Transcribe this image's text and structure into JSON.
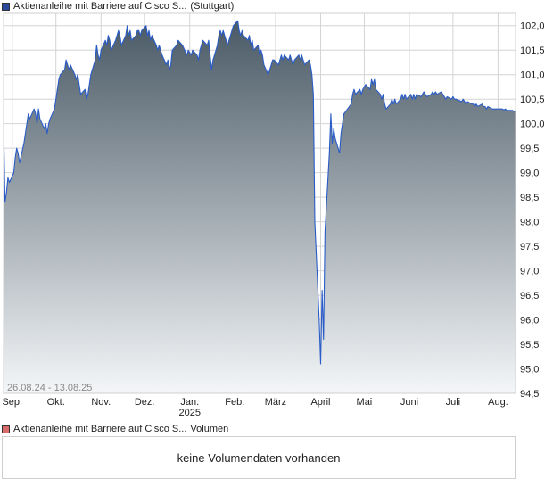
{
  "price_legend": {
    "label": "Aktienanleihe mit Barriere auf Cisco S...",
    "exchange": "(Stuttgart)",
    "swatch_color": "#2a4a9c"
  },
  "volume_legend": {
    "label": "Aktienanleihe mit Barriere auf Cisco S...",
    "suffix": "Volumen",
    "swatch_color": "#d96b6b"
  },
  "volume_panel": {
    "message": "keine Volumendaten vorhanden"
  },
  "colors": {
    "line": "#2a5cc8",
    "area_top": "#4a5a66",
    "area_bottom": "#f4f6f8",
    "grid": "#d4d4d4",
    "frame": "#cfcfcf"
  },
  "chart_data": {
    "type": "area",
    "date_range_label": "26.08.24 - 13.08.25",
    "xlim": [
      "2024-08-26",
      "2025-08-13"
    ],
    "ylim": [
      94.5,
      102.25
    ],
    "yticks": [
      {
        "value": 94.5,
        "label": "94,5"
      },
      {
        "value": 95.0,
        "label": "95,0"
      },
      {
        "value": 95.5,
        "label": "95,5"
      },
      {
        "value": 96.0,
        "label": "96,0"
      },
      {
        "value": 96.5,
        "label": "96,5"
      },
      {
        "value": 97.0,
        "label": "97,0"
      },
      {
        "value": 97.5,
        "label": "97,5"
      },
      {
        "value": 98.0,
        "label": "98,0"
      },
      {
        "value": 98.5,
        "label": "98,5"
      },
      {
        "value": 99.0,
        "label": "99,0"
      },
      {
        "value": 99.5,
        "label": "99,5"
      },
      {
        "value": 100.0,
        "label": "100,0"
      },
      {
        "value": 100.5,
        "label": "100,5"
      },
      {
        "value": 101.0,
        "label": "101,0"
      },
      {
        "value": 101.5,
        "label": "101,5"
      },
      {
        "value": 102.0,
        "label": "102,0"
      }
    ],
    "xticks": [
      {
        "date": "2024-09-01",
        "label": "Sep."
      },
      {
        "date": "2024-10-01",
        "label": "Okt."
      },
      {
        "date": "2024-11-01",
        "label": "Nov."
      },
      {
        "date": "2024-12-01",
        "label": "Dez."
      },
      {
        "date": "2025-01-01",
        "label": "Jan.",
        "sublabel": "2025"
      },
      {
        "date": "2025-02-01",
        "label": "Feb."
      },
      {
        "date": "2025-03-01",
        "label": "März"
      },
      {
        "date": "2025-04-01",
        "label": "April"
      },
      {
        "date": "2025-05-01",
        "label": "Mai"
      },
      {
        "date": "2025-06-01",
        "label": "Juni"
      },
      {
        "date": "2025-07-01",
        "label": "Juli"
      },
      {
        "date": "2025-08-01",
        "label": "Aug."
      }
    ],
    "grid": true,
    "series": [
      {
        "points": [
          [
            "2024-08-26",
            100.0
          ],
          [
            "2024-08-27",
            98.4
          ],
          [
            "2024-08-28",
            98.6
          ],
          [
            "2024-08-29",
            98.9
          ],
          [
            "2024-08-30",
            98.8
          ],
          [
            "2024-09-02",
            99.0
          ],
          [
            "2024-09-03",
            99.3
          ],
          [
            "2024-09-04",
            99.5
          ],
          [
            "2024-09-05",
            99.4
          ],
          [
            "2024-09-06",
            99.2
          ],
          [
            "2024-09-09",
            99.6
          ],
          [
            "2024-09-10",
            99.8
          ],
          [
            "2024-09-11",
            100.0
          ],
          [
            "2024-09-12",
            100.2
          ],
          [
            "2024-09-13",
            100.1
          ],
          [
            "2024-09-16",
            100.3
          ],
          [
            "2024-09-17",
            100.2
          ],
          [
            "2024-09-18",
            100.0
          ],
          [
            "2024-09-19",
            100.3
          ],
          [
            "2024-09-20",
            100.1
          ],
          [
            "2024-09-23",
            99.9
          ],
          [
            "2024-09-24",
            100.0
          ],
          [
            "2024-09-25",
            99.8
          ],
          [
            "2024-09-26",
            100.0
          ],
          [
            "2024-09-27",
            100.1
          ],
          [
            "2024-09-30",
            100.3
          ],
          [
            "2024-10-01",
            100.5
          ],
          [
            "2024-10-02",
            100.7
          ],
          [
            "2024-10-03",
            100.9
          ],
          [
            "2024-10-04",
            101.0
          ],
          [
            "2024-10-07",
            101.1
          ],
          [
            "2024-10-08",
            101.3
          ],
          [
            "2024-10-09",
            101.2
          ],
          [
            "2024-10-10",
            101.1
          ],
          [
            "2024-10-11",
            101.2
          ],
          [
            "2024-10-14",
            101.0
          ],
          [
            "2024-10-15",
            100.9
          ],
          [
            "2024-10-16",
            101.0
          ],
          [
            "2024-10-17",
            100.8
          ],
          [
            "2024-10-18",
            100.6
          ],
          [
            "2024-10-21",
            100.7
          ],
          [
            "2024-10-22",
            100.5
          ],
          [
            "2024-10-23",
            100.6
          ],
          [
            "2024-10-24",
            100.8
          ],
          [
            "2024-10-25",
            101.0
          ],
          [
            "2024-10-28",
            101.3
          ],
          [
            "2024-10-29",
            101.6
          ],
          [
            "2024-10-30",
            101.4
          ],
          [
            "2024-10-31",
            101.3
          ],
          [
            "2024-11-01",
            101.5
          ],
          [
            "2024-11-04",
            101.7
          ],
          [
            "2024-11-05",
            101.6
          ],
          [
            "2024-11-06",
            101.8
          ],
          [
            "2024-11-07",
            101.7
          ],
          [
            "2024-11-08",
            101.5
          ],
          [
            "2024-11-11",
            101.7
          ],
          [
            "2024-11-12",
            101.8
          ],
          [
            "2024-11-13",
            101.9
          ],
          [
            "2024-11-14",
            101.8
          ],
          [
            "2024-11-15",
            101.6
          ],
          [
            "2024-11-18",
            101.8
          ],
          [
            "2024-11-19",
            102.0
          ],
          [
            "2024-11-20",
            101.8
          ],
          [
            "2024-11-21",
            101.9
          ],
          [
            "2024-11-22",
            101.7
          ],
          [
            "2024-11-25",
            101.8
          ],
          [
            "2024-11-26",
            101.9
          ],
          [
            "2024-11-27",
            101.9
          ],
          [
            "2024-11-28",
            101.8
          ],
          [
            "2024-11-29",
            101.9
          ],
          [
            "2024-12-02",
            102.0
          ],
          [
            "2024-12-03",
            101.8
          ],
          [
            "2024-12-04",
            101.9
          ],
          [
            "2024-12-05",
            101.7
          ],
          [
            "2024-12-06",
            101.8
          ],
          [
            "2024-12-09",
            101.6
          ],
          [
            "2024-12-10",
            101.5
          ],
          [
            "2024-12-11",
            101.6
          ],
          [
            "2024-12-12",
            101.5
          ],
          [
            "2024-12-13",
            101.4
          ],
          [
            "2024-12-16",
            101.2
          ],
          [
            "2024-12-17",
            101.3
          ],
          [
            "2024-12-18",
            101.1
          ],
          [
            "2024-12-19",
            101.2
          ],
          [
            "2024-12-20",
            101.5
          ],
          [
            "2024-12-23",
            101.6
          ],
          [
            "2024-12-24",
            101.7
          ],
          [
            "2024-12-27",
            101.6
          ],
          [
            "2024-12-30",
            101.4
          ],
          [
            "2024-12-31",
            101.5
          ],
          [
            "2025-01-02",
            101.4
          ],
          [
            "2025-01-03",
            101.5
          ],
          [
            "2025-01-06",
            101.4
          ],
          [
            "2025-01-07",
            101.3
          ],
          [
            "2025-01-08",
            101.5
          ],
          [
            "2025-01-09",
            101.6
          ],
          [
            "2025-01-10",
            101.7
          ],
          [
            "2025-01-13",
            101.6
          ],
          [
            "2025-01-14",
            101.7
          ],
          [
            "2025-01-15",
            101.4
          ],
          [
            "2025-01-16",
            101.1
          ],
          [
            "2025-01-17",
            101.3
          ],
          [
            "2025-01-20",
            101.6
          ],
          [
            "2025-01-21",
            101.8
          ],
          [
            "2025-01-22",
            101.9
          ],
          [
            "2025-01-23",
            101.8
          ],
          [
            "2025-01-24",
            101.9
          ],
          [
            "2025-01-27",
            101.6
          ],
          [
            "2025-01-28",
            101.7
          ],
          [
            "2025-01-29",
            101.8
          ],
          [
            "2025-01-30",
            101.9
          ],
          [
            "2025-01-31",
            102.0
          ],
          [
            "2025-02-03",
            102.1
          ],
          [
            "2025-02-04",
            101.9
          ],
          [
            "2025-02-05",
            101.8
          ],
          [
            "2025-02-06",
            101.9
          ],
          [
            "2025-02-07",
            101.8
          ],
          [
            "2025-02-10",
            101.7
          ],
          [
            "2025-02-11",
            101.8
          ],
          [
            "2025-02-12",
            101.6
          ],
          [
            "2025-02-13",
            101.7
          ],
          [
            "2025-02-14",
            101.5
          ],
          [
            "2025-02-17",
            101.6
          ],
          [
            "2025-02-18",
            101.4
          ],
          [
            "2025-02-19",
            101.5
          ],
          [
            "2025-02-20",
            101.4
          ],
          [
            "2025-02-21",
            101.2
          ],
          [
            "2025-02-24",
            101.0
          ],
          [
            "2025-02-25",
            101.1
          ],
          [
            "2025-02-26",
            101.2
          ],
          [
            "2025-02-27",
            101.3
          ],
          [
            "2025-02-28",
            101.3
          ],
          [
            "2025-03-03",
            101.2
          ],
          [
            "2025-03-04",
            101.3
          ],
          [
            "2025-03-05",
            101.4
          ],
          [
            "2025-03-06",
            101.3
          ],
          [
            "2025-03-07",
            101.4
          ],
          [
            "2025-03-10",
            101.3
          ],
          [
            "2025-03-11",
            101.4
          ],
          [
            "2025-03-12",
            101.3
          ],
          [
            "2025-03-13",
            101.2
          ],
          [
            "2025-03-14",
            101.3
          ],
          [
            "2025-03-17",
            101.4
          ],
          [
            "2025-03-18",
            101.3
          ],
          [
            "2025-03-19",
            101.4
          ],
          [
            "2025-03-20",
            101.3
          ],
          [
            "2025-03-21",
            101.2
          ],
          [
            "2025-03-24",
            101.3
          ],
          [
            "2025-03-25",
            101.2
          ],
          [
            "2025-03-26",
            101.0
          ],
          [
            "2025-03-27",
            100.6
          ],
          [
            "2025-03-28",
            98.0
          ],
          [
            "2025-03-31",
            96.0
          ],
          [
            "2025-04-01",
            95.1
          ],
          [
            "2025-04-02",
            96.6
          ],
          [
            "2025-04-03",
            95.6
          ],
          [
            "2025-04-04",
            97.8
          ],
          [
            "2025-04-07",
            99.4
          ],
          [
            "2025-04-08",
            100.2
          ],
          [
            "2025-04-09",
            99.6
          ],
          [
            "2025-04-10",
            99.9
          ],
          [
            "2025-04-11",
            99.7
          ],
          [
            "2025-04-14",
            99.4
          ],
          [
            "2025-04-15",
            99.8
          ],
          [
            "2025-04-16",
            100.0
          ],
          [
            "2025-04-17",
            100.2
          ],
          [
            "2025-04-22",
            100.4
          ],
          [
            "2025-04-23",
            100.6
          ],
          [
            "2025-04-24",
            100.7
          ],
          [
            "2025-04-25",
            100.6
          ],
          [
            "2025-04-28",
            100.7
          ],
          [
            "2025-04-29",
            100.6
          ],
          [
            "2025-04-30",
            100.7
          ],
          [
            "2025-05-02",
            100.8
          ],
          [
            "2025-05-05",
            100.7
          ],
          [
            "2025-05-06",
            100.9
          ],
          [
            "2025-05-07",
            100.8
          ],
          [
            "2025-05-08",
            100.9
          ],
          [
            "2025-05-09",
            100.7
          ],
          [
            "2025-05-12",
            100.6
          ],
          [
            "2025-05-13",
            100.5
          ],
          [
            "2025-05-14",
            100.6
          ],
          [
            "2025-05-15",
            100.4
          ],
          [
            "2025-05-16",
            100.3
          ],
          [
            "2025-05-19",
            100.4
          ],
          [
            "2025-05-20",
            100.5
          ],
          [
            "2025-05-21",
            100.4
          ],
          [
            "2025-05-22",
            100.5
          ],
          [
            "2025-05-23",
            100.4
          ],
          [
            "2025-05-26",
            100.5
          ],
          [
            "2025-05-27",
            100.6
          ],
          [
            "2025-05-28",
            100.5
          ],
          [
            "2025-05-29",
            100.6
          ],
          [
            "2025-05-30",
            100.5
          ],
          [
            "2025-06-02",
            100.6
          ],
          [
            "2025-06-03",
            100.5
          ],
          [
            "2025-06-04",
            100.6
          ],
          [
            "2025-06-05",
            100.5
          ],
          [
            "2025-06-06",
            100.6
          ],
          [
            "2025-06-09",
            100.55
          ],
          [
            "2025-06-10",
            100.6
          ],
          [
            "2025-06-11",
            100.65
          ],
          [
            "2025-06-12",
            100.6
          ],
          [
            "2025-06-13",
            100.55
          ],
          [
            "2025-06-16",
            100.6
          ],
          [
            "2025-06-17",
            100.65
          ],
          [
            "2025-06-18",
            100.6
          ],
          [
            "2025-06-19",
            100.65
          ],
          [
            "2025-06-20",
            100.6
          ],
          [
            "2025-06-23",
            100.65
          ],
          [
            "2025-06-24",
            100.6
          ],
          [
            "2025-06-25",
            100.55
          ],
          [
            "2025-06-26",
            100.5
          ],
          [
            "2025-06-27",
            100.55
          ],
          [
            "2025-06-30",
            100.5
          ],
          [
            "2025-07-01",
            100.55
          ],
          [
            "2025-07-02",
            100.5
          ],
          [
            "2025-07-03",
            100.5
          ],
          [
            "2025-07-07",
            100.45
          ],
          [
            "2025-07-08",
            100.5
          ],
          [
            "2025-07-09",
            100.45
          ],
          [
            "2025-07-10",
            100.4
          ],
          [
            "2025-07-11",
            100.45
          ],
          [
            "2025-07-14",
            100.4
          ],
          [
            "2025-07-15",
            100.4
          ],
          [
            "2025-07-16",
            100.35
          ],
          [
            "2025-07-17",
            100.4
          ],
          [
            "2025-07-18",
            100.35
          ],
          [
            "2025-07-21",
            100.4
          ],
          [
            "2025-07-22",
            100.35
          ],
          [
            "2025-07-23",
            100.35
          ],
          [
            "2025-07-24",
            100.3
          ],
          [
            "2025-07-25",
            100.35
          ],
          [
            "2025-07-28",
            100.3
          ],
          [
            "2025-07-29",
            100.3
          ],
          [
            "2025-07-30",
            100.3
          ],
          [
            "2025-07-31",
            100.3
          ],
          [
            "2025-08-01",
            100.3
          ],
          [
            "2025-08-04",
            100.3
          ],
          [
            "2025-08-05",
            100.28
          ],
          [
            "2025-08-06",
            100.3
          ],
          [
            "2025-08-07",
            100.27
          ],
          [
            "2025-08-08",
            100.27
          ],
          [
            "2025-08-11",
            100.27
          ],
          [
            "2025-08-12",
            100.25
          ],
          [
            "2025-08-13",
            100.25
          ]
        ]
      }
    ]
  }
}
